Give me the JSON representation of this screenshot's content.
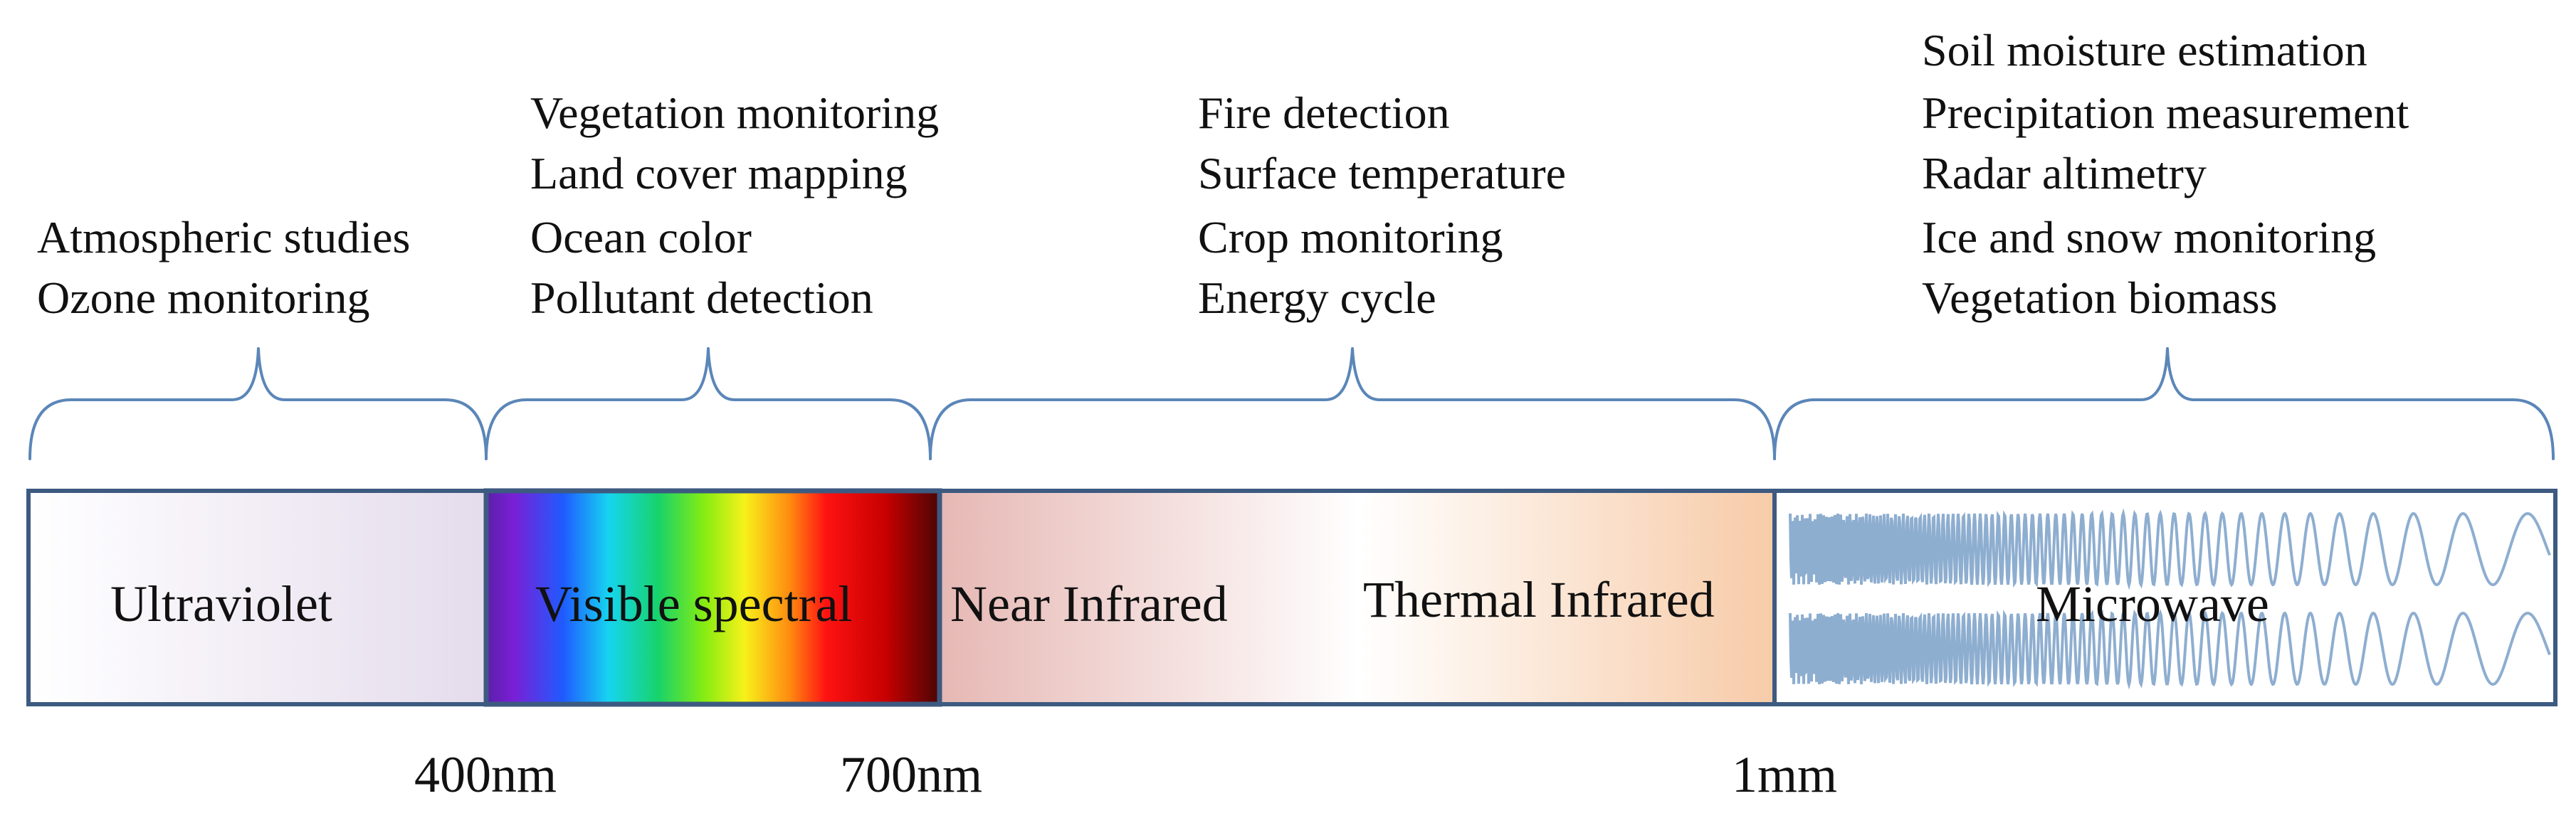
{
  "applications": {
    "ultraviolet": [
      "Atmospheric studies",
      "Ozone monitoring"
    ],
    "visible": [
      "Vegetation monitoring",
      "Land cover mapping",
      "Ocean color",
      "Pollutant detection"
    ],
    "infrared": [
      "Fire detection",
      "Surface temperature",
      "Crop monitoring",
      "Energy cycle"
    ],
    "microwave": [
      "Soil moisture estimation",
      "Precipitation measurement",
      "Radar altimetry",
      "Ice and snow monitoring",
      "Vegetation biomass"
    ]
  },
  "bands": {
    "ultraviolet": "Ultraviolet",
    "visible": "Visible spectral",
    "near_infrared": "Near Infrared",
    "thermal_infrared": "Thermal Infrared",
    "microwave": "Microwave"
  },
  "boundaries": [
    "400nm",
    "700nm",
    "1mm"
  ],
  "colors": {
    "frame": "#3d5a80",
    "bracket": "#5b86b8",
    "wave": "#8eaed0",
    "ultraviolet_tint": "#e5dcec",
    "near_ir_tint": "#e6b8b4",
    "thermal_ir_tint": "#f7cba8"
  }
}
